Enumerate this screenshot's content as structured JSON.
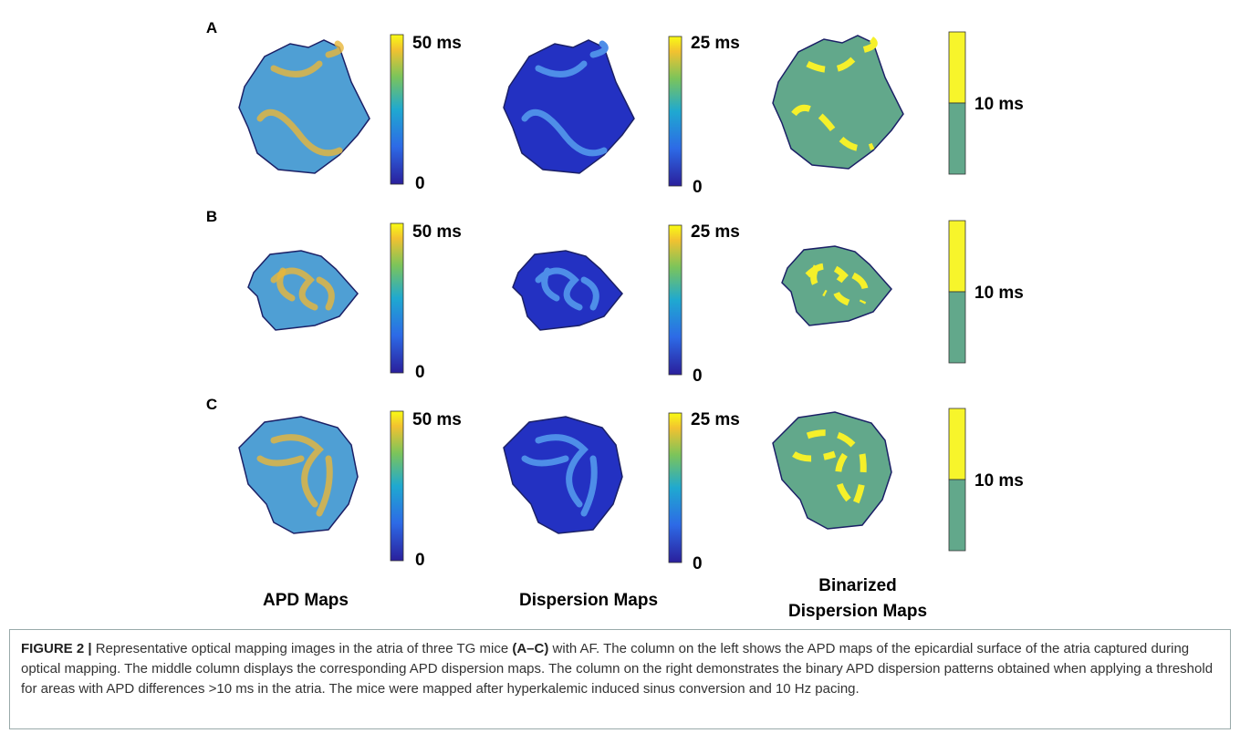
{
  "figure": {
    "panels": [
      {
        "label": "A",
        "apd_max": "50 ms",
        "apd_min": "0",
        "dispersion_max": "25 ms",
        "dispersion_min": "0",
        "threshold": "10 ms"
      },
      {
        "label": "B",
        "apd_max": "50 ms",
        "apd_min": "0",
        "dispersion_max": "25 ms",
        "dispersion_min": "0",
        "threshold": "10 ms"
      },
      {
        "label": "C",
        "apd_max": "50 ms",
        "apd_min": "0",
        "dispersion_max": "25 ms",
        "dispersion_min": "0",
        "threshold": "10 ms"
      }
    ],
    "column_titles": {
      "apd": "APD Maps",
      "dispersion": "Dispersion Maps",
      "binarized_line1": "Binarized",
      "binarized_line2": "Dispersion Maps"
    },
    "caption": {
      "label": "FIGURE 2 |",
      "before": "Representative optical mapping images in the atria of three TG mice",
      "emphasis": "(A–C)",
      "after": "with AF. The column on the left shows the APD maps of the epicardial surface of the atria captured during optical mapping. The middle column displays the corresponding APD dispersion maps. The column on the right demonstrates the binary APD dispersion patterns obtained when applying a threshold for areas with APD differences >10 ms in the atria. The mice were mapped after hyperkalemic induced sinus conversion and 10 Hz pacing."
    }
  }
}
